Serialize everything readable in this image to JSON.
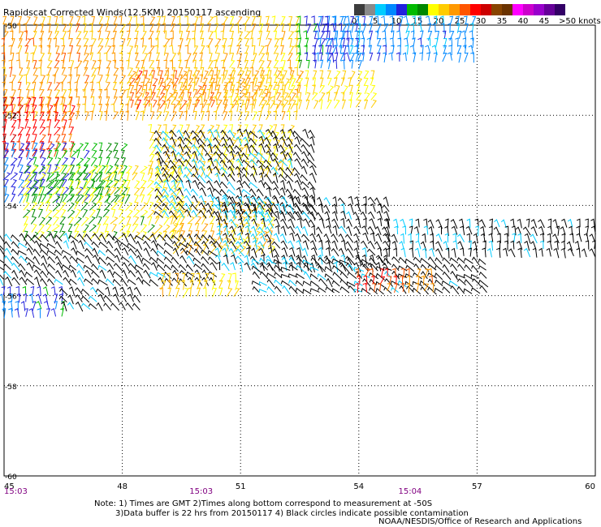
{
  "title": "Rapidscat Corrected Winds(12.5KM) 20150117 ascending",
  "legend": {
    "unit_label": ">50 knots",
    "ticks": [
      "0",
      "5",
      "10",
      "15",
      "20",
      "25",
      "30",
      "35",
      "40",
      "45"
    ],
    "colors": [
      "#3c3c3c",
      "#8a8a8a",
      "#00ccff",
      "#0088ff",
      "#2222dd",
      "#00bb00",
      "#008800",
      "#ffff00",
      "#ffcc00",
      "#ff9900",
      "#ff5500",
      "#ff0000",
      "#cc0000",
      "#884400",
      "#6a3300",
      "#ff00ff",
      "#cc00cc",
      "#9900cc",
      "#660099",
      "#330066"
    ]
  },
  "chart_data": {
    "type": "wind-barb",
    "title": "Rapidscat Corrected Winds(12.5KM) 20150117 ascending",
    "x_ticks": [
      "45",
      "48",
      "51",
      "54",
      "57",
      "60"
    ],
    "y_ticks": [
      "-50",
      "-52",
      "-54",
      "-56",
      "-58",
      "-60"
    ],
    "xlim": [
      45,
      60
    ],
    "ylim": [
      -60,
      -50
    ],
    "grid": true,
    "time_labels": [
      {
        "lon": 45.0,
        "text": "15:03"
      },
      {
        "lon": 50.0,
        "text": "15:03"
      },
      {
        "lon": 55.3,
        "text": "15:04"
      }
    ],
    "swaths": [
      {
        "lon0": 45.0,
        "lon1": 52.5,
        "lat0": -50.0,
        "lat1": -52.2,
        "spd0": 24,
        "spd1": 21,
        "dir": 75
      },
      {
        "lon0": 52.5,
        "lon1": 54.0,
        "lat0": -50.0,
        "lat1": -51.0,
        "spd0": 14,
        "spd1": 8,
        "dir": 80
      },
      {
        "lon0": 45.0,
        "lon1": 46.8,
        "lat0": -51.8,
        "lat1": -53.0,
        "spd0": 30,
        "spd1": 26,
        "dir": 70
      },
      {
        "lon0": 48.2,
        "lon1": 54.5,
        "lat0": -51.2,
        "lat1": -52.0,
        "spd0": 26,
        "spd1": 19,
        "dir": 65
      },
      {
        "lon0": 53.0,
        "lon1": 57.0,
        "lat0": -50.0,
        "lat1": -50.9,
        "spd0": 10,
        "spd1": 8,
        "dir": 85
      },
      {
        "lon0": 45.0,
        "lon1": 48.0,
        "lat0": -52.8,
        "lat1": -54.0,
        "spd0": 10,
        "spd1": 16,
        "dir": 60
      },
      {
        "lon0": 45.5,
        "lon1": 49.5,
        "lat0": -53.3,
        "lat1": -54.8,
        "spd0": 17,
        "spd1": 20,
        "dir": 55
      },
      {
        "lon0": 49.3,
        "lon1": 51.8,
        "lat0": -54.1,
        "lat1": -55.1,
        "spd0": 22,
        "spd1": 21,
        "dir": 60
      },
      {
        "lon0": 48.7,
        "lon1": 52.3,
        "lat0": -52.4,
        "lat1": -53.4,
        "spd0": 21,
        "spd1": 20,
        "dir": 65
      },
      {
        "lon0": 49.0,
        "lon1": 53.0,
        "lat0": -52.5,
        "lat1": -54.3,
        "spd0": 5,
        "spd1": 3,
        "dir": 120
      },
      {
        "lon0": 50.5,
        "lon1": 54.8,
        "lat0": -54.0,
        "lat1": -55.6,
        "spd0": 5,
        "spd1": 3,
        "dir": 110
      },
      {
        "lon0": 54.8,
        "lon1": 60.0,
        "lat0": -54.5,
        "lat1": -55.3,
        "spd0": 5,
        "spd1": 3,
        "dir": 100
      },
      {
        "lon0": 45.0,
        "lon1": 50.5,
        "lat0": -54.8,
        "lat1": -55.9,
        "spd0": 4,
        "spd1": 3,
        "dir": 130
      },
      {
        "lon0": 51.5,
        "lon1": 57.3,
        "lat0": -55.3,
        "lat1": -56.0,
        "spd0": 4,
        "spd1": 3,
        "dir": 140
      },
      {
        "lon0": 49.0,
        "lon1": 51.0,
        "lat0": -55.7,
        "lat1": -56.1,
        "spd0": 22,
        "spd1": 20,
        "dir": 75
      },
      {
        "lon0": 54.0,
        "lon1": 55.9,
        "lat0": -55.6,
        "lat1": -56.0,
        "spd0": 28,
        "spd1": 24,
        "dir": 80
      },
      {
        "lon0": 45.0,
        "lon1": 46.6,
        "lat0": -56.0,
        "lat1": -56.6,
        "spd0": 10,
        "spd1": 12,
        "dir": 90
      },
      {
        "lon0": 46.6,
        "lon1": 48.5,
        "lat0": -56.0,
        "lat1": -56.4,
        "spd0": 4,
        "spd1": 3,
        "dir": 120
      }
    ]
  },
  "notes": {
    "line1": "Note: 1) Times are GMT 2)Times along bottom correspond to measurement at -50S",
    "line2": "3)Data buffer is 22 hrs from 20150117 4) Black circles indicate possible contamination",
    "credit": "NOAA/NESDIS/Office of Research and Applications"
  }
}
